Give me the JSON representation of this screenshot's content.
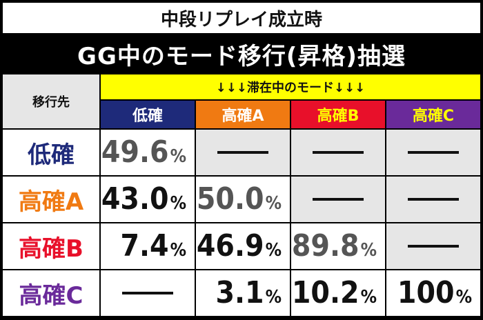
{
  "title_top": "中段リプレイ成立時",
  "title_main": "GG中のモード移行(昇格)抽選",
  "corner_label": "移行先",
  "header_band": "↓↓↓滞在中のモード↓↓↓",
  "colors": {
    "navy": "#1e2a7a",
    "orange": "#f07a12",
    "red": "#e8102a",
    "purple": "#6a2a9a",
    "yellow": "#ffff00"
  },
  "columns": [
    {
      "label": "低確",
      "bg": "#1e2a7a",
      "fg": "#ffffff"
    },
    {
      "label": "高確A",
      "bg": "#f07a12",
      "fg": "#ffffff"
    },
    {
      "label": "高確B",
      "bg": "#e8102a",
      "fg": "#ffff00"
    },
    {
      "label": "高確C",
      "bg": "#6a2a9a",
      "fg": "#ffff00"
    }
  ],
  "rows": [
    {
      "label": "低確",
      "color": "#1e2a7a",
      "cells": [
        {
          "num": "49.6",
          "pct": "%",
          "tone": "gray-text"
        },
        {
          "dash": true
        },
        {
          "dash": true
        },
        {
          "dash": true
        }
      ]
    },
    {
      "label": "高確A",
      "color": "#f07a12",
      "cells": [
        {
          "num": "43.0",
          "pct": "%",
          "tone": "dark"
        },
        {
          "num": "50.0",
          "pct": "%",
          "tone": "gray-text"
        },
        {
          "dash": true
        },
        {
          "dash": true
        }
      ]
    },
    {
      "label": "高確B",
      "color": "#e8102a",
      "cells": [
        {
          "num": "7.4",
          "pct": "%",
          "tone": "dark"
        },
        {
          "num": "46.9",
          "pct": "%",
          "tone": "dark"
        },
        {
          "num": "89.8",
          "pct": "%",
          "tone": "gray-text"
        },
        {
          "dash": true
        }
      ]
    },
    {
      "label": "高確C",
      "color": "#6a2a9a",
      "cells": [
        {
          "dash": true
        },
        {
          "num": "3.1",
          "pct": "%",
          "tone": "dark"
        },
        {
          "num": "10.2",
          "pct": "%",
          "tone": "dark"
        },
        {
          "num": "100",
          "pct": "%",
          "tone": "dark"
        }
      ]
    }
  ]
}
